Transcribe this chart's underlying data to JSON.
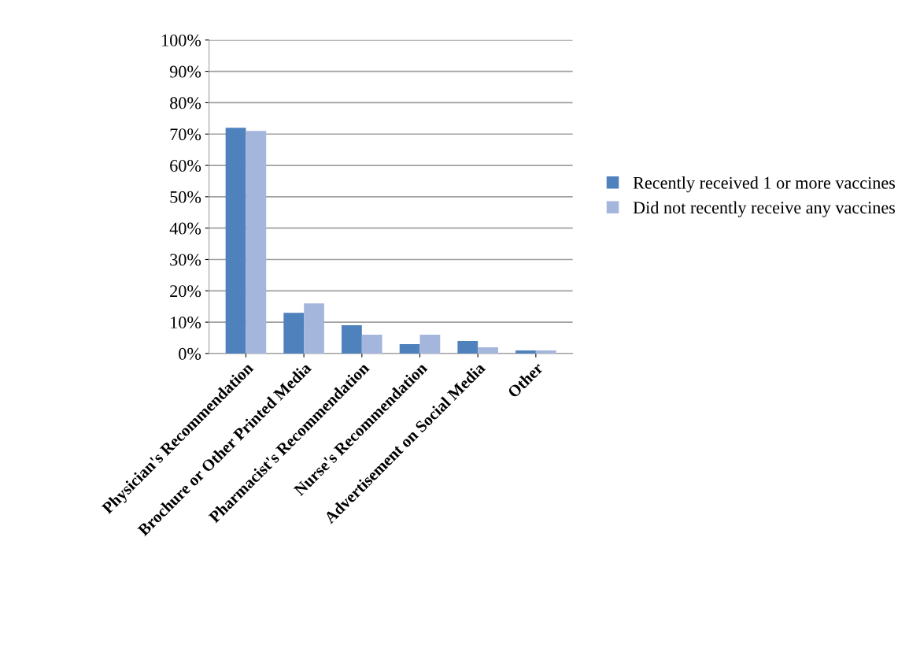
{
  "chart_data": {
    "type": "bar",
    "categories": [
      "Physician's Recommendation",
      "Brochure or Other Printed Media",
      "Pharmacist's Recommendation",
      "Nurse's Recommendation",
      "Advertisement on Social Media",
      "Other"
    ],
    "series": [
      {
        "name": "Recently received 1 or more vaccines",
        "color": "#4f81bd",
        "values": [
          72,
          13,
          9,
          3,
          4,
          1
        ]
      },
      {
        "name": "Did not recently receive any vaccines",
        "color": "#a5b6dc",
        "values": [
          71,
          16,
          6,
          6,
          2,
          1
        ]
      }
    ],
    "ylim": [
      0,
      100
    ],
    "yticks": [
      {
        "value": 0,
        "label": "0%"
      },
      {
        "value": 10,
        "label": "10%"
      },
      {
        "value": 20,
        "label": "20%"
      },
      {
        "value": 30,
        "label": "30%"
      },
      {
        "value": 40,
        "label": "40%"
      },
      {
        "value": 50,
        "label": "50%"
      },
      {
        "value": 60,
        "label": "60%"
      },
      {
        "value": 70,
        "label": "70%"
      },
      {
        "value": 80,
        "label": "80%"
      },
      {
        "value": 90,
        "label": "90%"
      },
      {
        "value": 100,
        "label": "100%"
      }
    ],
    "grid": "y",
    "legend": "right"
  }
}
